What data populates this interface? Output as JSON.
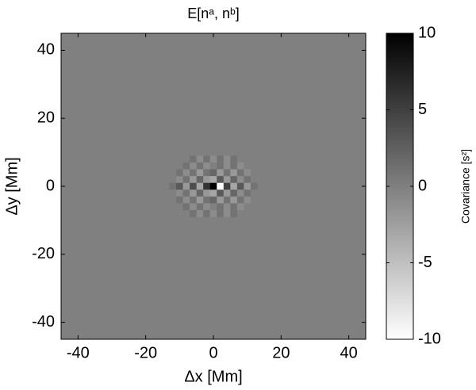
{
  "chart_data": {
    "type": "heatmap",
    "title": "E[nᵃ, nᵇ]",
    "x_label": "Δx [Mm]",
    "y_label": "Δy [Mm]",
    "colorbar_label": "Covariance [s²]",
    "xlim": [
      -45,
      45
    ],
    "ylim": [
      -45,
      45
    ],
    "xticks": [
      -40,
      -20,
      0,
      20,
      40
    ],
    "yticks": [
      -40,
      -20,
      0,
      20,
      40
    ],
    "clim": [
      -10,
      10
    ],
    "cticks": [
      -10,
      -5,
      0,
      5,
      10
    ],
    "colormap": [
      "#ffffff",
      "#000000"
    ],
    "x": [
      -12,
      -10,
      -8,
      -6,
      -4,
      -2,
      0,
      2,
      4,
      6,
      8,
      10,
      12
    ],
    "y": [
      8,
      6,
      4,
      2,
      0,
      -2,
      -4,
      -6,
      -8
    ],
    "z": [
      [
        0,
        0,
        0,
        1,
        -1,
        1,
        -1,
        1,
        -1,
        1,
        0,
        0,
        0
      ],
      [
        0,
        0,
        1,
        -1,
        1,
        -1,
        0,
        1,
        -1,
        1,
        -1,
        0,
        0
      ],
      [
        0,
        1,
        -1,
        1,
        -2,
        1,
        2,
        -2,
        1,
        -2,
        1,
        -1,
        0
      ],
      [
        0,
        -1,
        1,
        -2,
        2,
        -2,
        -3,
        3,
        -2,
        2,
        -1,
        1,
        0
      ],
      [
        1,
        3,
        -2,
        4,
        -3,
        6,
        10,
        -10,
        5,
        -3,
        3,
        -2,
        1
      ],
      [
        0,
        -1,
        1,
        -2,
        2,
        -2,
        -3,
        3,
        -2,
        2,
        -1,
        1,
        0
      ],
      [
        0,
        1,
        -1,
        1,
        -2,
        1,
        2,
        -2,
        1,
        -2,
        1,
        -1,
        0
      ],
      [
        0,
        0,
        1,
        -1,
        1,
        -1,
        0,
        1,
        -1,
        1,
        -1,
        0,
        0
      ],
      [
        0,
        0,
        0,
        1,
        -1,
        1,
        -1,
        1,
        -1,
        1,
        0,
        0,
        0
      ]
    ]
  }
}
